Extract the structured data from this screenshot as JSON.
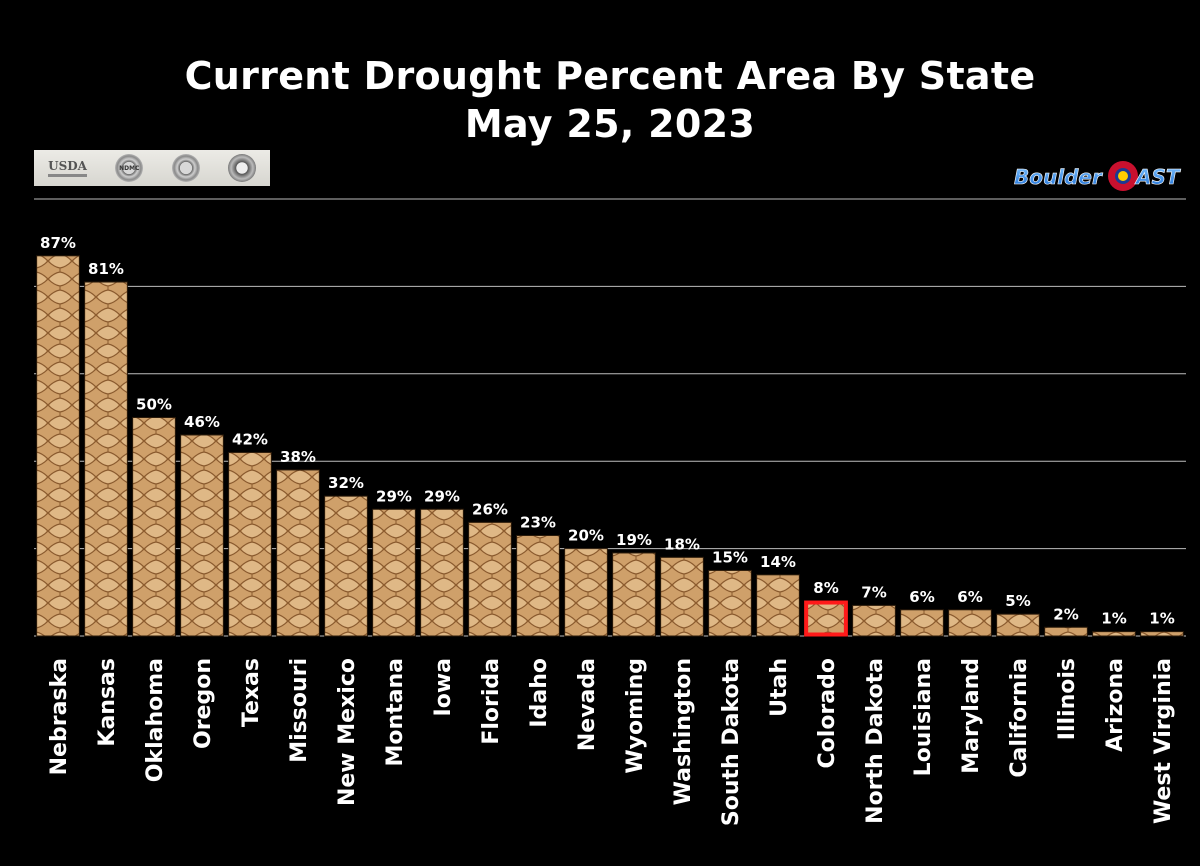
{
  "chart_data": {
    "type": "bar",
    "title": "Current Drought Percent Area By State",
    "subtitle": "May 25, 2023",
    "xlabel": "",
    "ylabel": "",
    "ylim": [
      0,
      100
    ],
    "grid": true,
    "categories": [
      "Nebraska",
      "Kansas",
      "Oklahoma",
      "Oregon",
      "Texas",
      "Missouri",
      "New Mexico",
      "Montana",
      "Iowa",
      "Florida",
      "Idaho",
      "Nevada",
      "Wyoming",
      "Washington",
      "South Dakota",
      "Utah",
      "Colorado",
      "North Dakota",
      "Louisiana",
      "Maryland",
      "California",
      "Illinois",
      "Arizona",
      "West Virginia"
    ],
    "values": [
      87,
      81,
      50,
      46,
      42,
      38,
      32,
      29,
      29,
      26,
      23,
      20,
      19,
      18,
      15,
      14,
      8,
      7,
      6,
      6,
      5,
      2,
      1,
      1
    ],
    "value_labels": [
      "87%",
      "81%",
      "50%",
      "46%",
      "42%",
      "38%",
      "32%",
      "29%",
      "29%",
      "26%",
      "23%",
      "20%",
      "19%",
      "18%",
      "15%",
      "14%",
      "8%",
      "7%",
      "6%",
      "6%",
      "5%",
      "2%",
      "1%",
      "1%"
    ],
    "highlight": "Colorado",
    "highlight_color": "#ff1a1a",
    "bar_color": "#cfa06a",
    "grid_color": "#bdbdbd"
  },
  "logos": {
    "usda": "USDA",
    "ndmc": "NDMC",
    "noaa": "NOAA",
    "brand_left": "Boulder",
    "brand_right": "AST"
  }
}
